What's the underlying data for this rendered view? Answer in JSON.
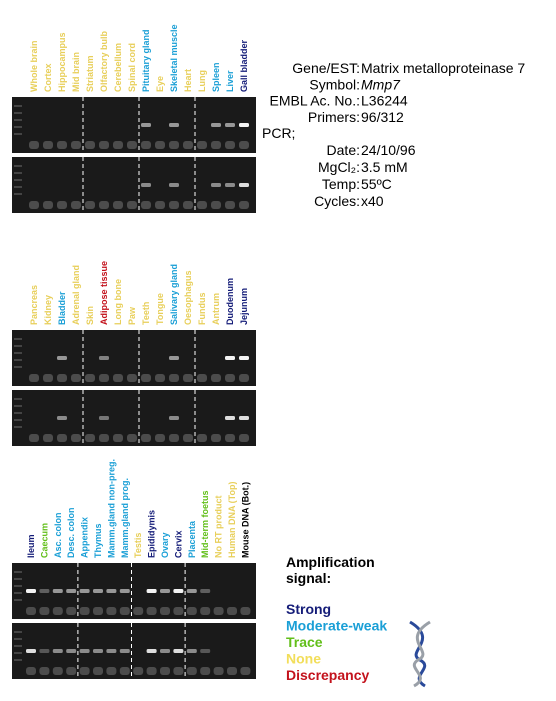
{
  "panels": [
    {
      "lanes": [
        {
          "label": "Whole brain",
          "color": "#e8cf5a"
        },
        {
          "label": "Cortex",
          "color": "#e8cf5a"
        },
        {
          "label": "Hippocampus",
          "color": "#e8cf5a"
        },
        {
          "label": "Mid brain",
          "color": "#e8cf5a"
        },
        {
          "label": "Striatum",
          "color": "#e8cf5a"
        },
        {
          "label": "Olfactory bulb",
          "color": "#e8cf5a"
        },
        {
          "label": "Cerebellum",
          "color": "#e8cf5a"
        },
        {
          "label": "Spinal cord",
          "color": "#e8cf5a"
        },
        {
          "label": "Pituitary gland",
          "color": "#1a9fd6"
        },
        {
          "label": "Eye",
          "color": "#e8cf5a"
        },
        {
          "label": "Skeletal muscle",
          "color": "#1a9fd6"
        },
        {
          "label": "Heart",
          "color": "#e8cf5a"
        },
        {
          "label": "Lung",
          "color": "#e8cf5a"
        },
        {
          "label": "Spleen",
          "color": "#1a9fd6"
        },
        {
          "label": "Liver",
          "color": "#1a9fd6"
        },
        {
          "label": "Gall bladder",
          "color": "#141c78"
        }
      ]
    },
    {
      "lanes": [
        {
          "label": "Pancreas",
          "color": "#e8cf5a"
        },
        {
          "label": "Kidney",
          "color": "#e8cf5a"
        },
        {
          "label": "Bladder",
          "color": "#1a9fd6"
        },
        {
          "label": "Adrenal gland",
          "color": "#e8cf5a"
        },
        {
          "label": "Skin",
          "color": "#e8cf5a"
        },
        {
          "label": "Adipose tissue",
          "color": "#c3121c"
        },
        {
          "label": "Long bone",
          "color": "#e8cf5a"
        },
        {
          "label": "Paw",
          "color": "#e8cf5a"
        },
        {
          "label": "Teeth",
          "color": "#e8cf5a"
        },
        {
          "label": "Tongue",
          "color": "#e8cf5a"
        },
        {
          "label": "Salivary gland",
          "color": "#1a9fd6"
        },
        {
          "label": "Oesophagus",
          "color": "#e8cf5a"
        },
        {
          "label": "Fundus",
          "color": "#e8cf5a"
        },
        {
          "label": "Antrum",
          "color": "#e8cf5a"
        },
        {
          "label": "Duodenum",
          "color": "#141c78"
        },
        {
          "label": "Jejunum",
          "color": "#141c78"
        }
      ]
    },
    {
      "lanes": [
        {
          "label": "Ileum",
          "color": "#141c78"
        },
        {
          "label": "Caecum",
          "color": "#62bf1a"
        },
        {
          "label": "Asc. colon",
          "color": "#1a9fd6"
        },
        {
          "label": "Desc. colon",
          "color": "#1a9fd6"
        },
        {
          "label": "Appendix",
          "color": "#1a9fd6"
        },
        {
          "label": "Thymus",
          "color": "#1a9fd6"
        },
        {
          "label": "Mamm.gland non-preg.",
          "color": "#1a9fd6"
        },
        {
          "label": "Mamm.gland prog.",
          "color": "#1a9fd6"
        },
        {
          "label": "Testis",
          "color": "#e8cf5a"
        },
        {
          "label": "Epididymis",
          "color": "#141c78"
        },
        {
          "label": "Ovary",
          "color": "#1a9fd6"
        },
        {
          "label": "Cervix",
          "color": "#141c78"
        },
        {
          "label": "Placenta",
          "color": "#1a9fd6"
        },
        {
          "label": "Mid-term foetus",
          "color": "#62bf1a"
        },
        {
          "label": "No RT product",
          "color": "#e8cf5a"
        },
        {
          "label": "Human DNA (Top)",
          "color": "#e8cf5a"
        },
        {
          "label": "Mouse DNA (Bot.)",
          "color": "#000000"
        }
      ]
    }
  ],
  "info": {
    "rows": [
      {
        "key": "Gene/EST:",
        "value": "Matrix metalloproteinase 7"
      },
      {
        "key": "Symbol:",
        "value": "Mmp7"
      },
      {
        "key": "EMBL Ac. No.:",
        "value": "L36244"
      },
      {
        "key": "Primers:",
        "value": "96/312"
      }
    ],
    "pcr": "PCR;",
    "pcr_rows": [
      {
        "key": "Date:",
        "value": "24/10/96"
      },
      {
        "key": "MgCl₂:",
        "value": "3.5 mM"
      },
      {
        "key": "Temp:",
        "value": "55ºC"
      },
      {
        "key": "Cycles:",
        "value": "x40"
      }
    ]
  },
  "legend": {
    "title_lines": [
      "Amplification",
      "signal:"
    ],
    "entries": [
      {
        "label": "Strong",
        "color": "#141c78"
      },
      {
        "label": "Moderate-weak",
        "color": "#1a9fd6"
      },
      {
        "label": "Trace",
        "color": "#62bf1a"
      },
      {
        "label": "None",
        "color": "#f2de5a"
      },
      {
        "label": "Discrepancy",
        "color": "#c3121c"
      }
    ]
  }
}
